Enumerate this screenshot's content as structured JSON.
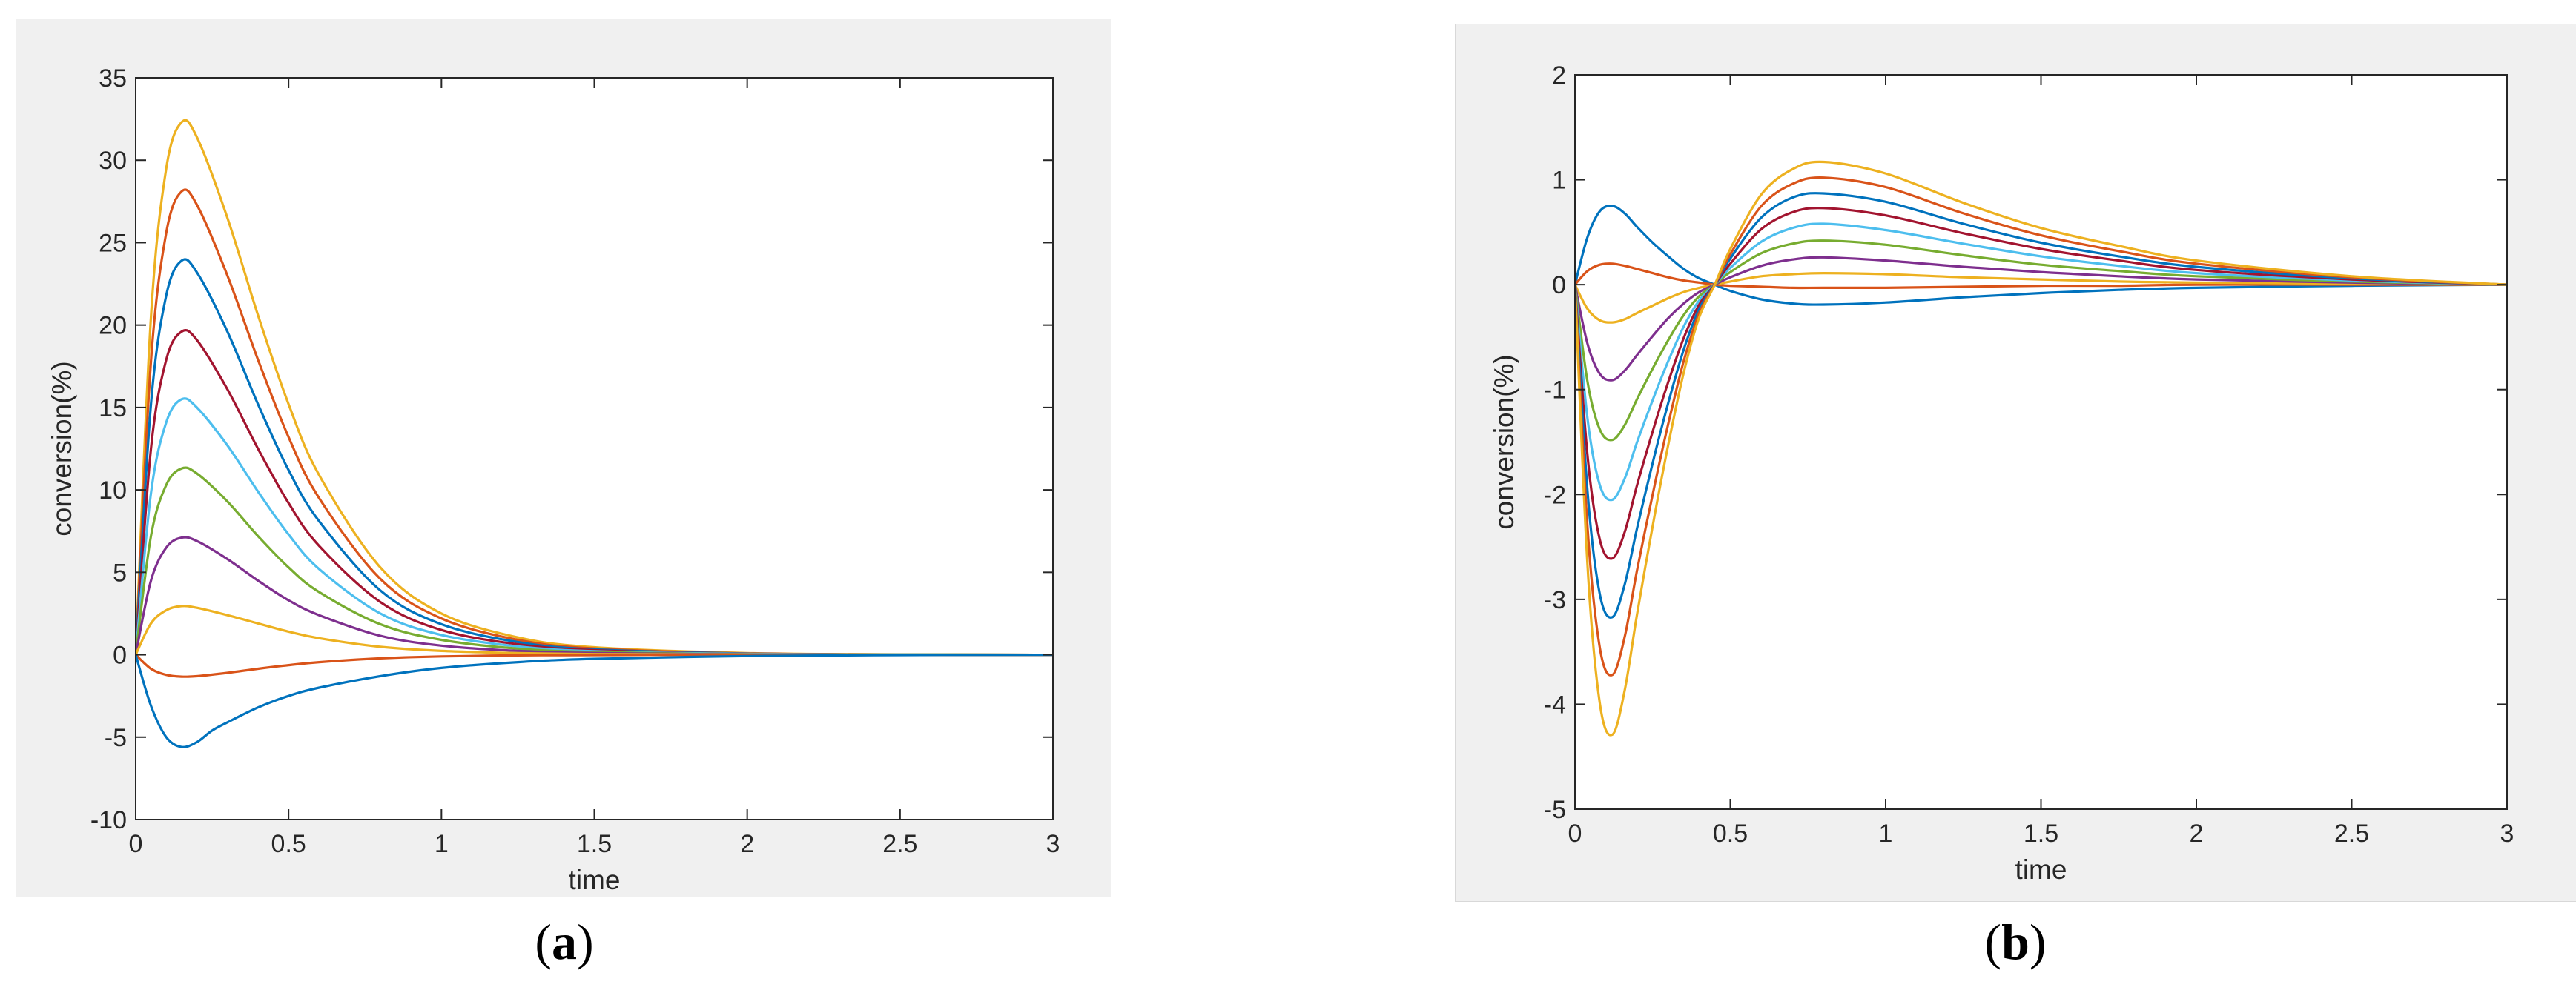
{
  "chart_data": [
    {
      "type": "line",
      "xlabel": "time",
      "ylabel": "conversion(%)",
      "xlim": [
        0,
        3
      ],
      "ylim": [
        -10,
        35
      ],
      "xticks": [
        "0",
        "0.5",
        "1",
        "1.5",
        "2",
        "2.5",
        "3"
      ],
      "yticks": [
        "-10",
        "-5",
        "0",
        "5",
        "10",
        "15",
        "20",
        "25",
        "30",
        "35"
      ],
      "grid": false,
      "legend": "none",
      "caption": {
        "open": "(",
        "letter": "a",
        "close": ")"
      },
      "series": [
        {
          "color": "#EDB120",
          "x": [
            0,
            0.05,
            0.1,
            0.15,
            0.2,
            0.3,
            0.4,
            0.5,
            0.6,
            0.8,
            1,
            1.25,
            1.5,
            2,
            2.5,
            3
          ],
          "y": [
            0,
            20.5,
            29.5,
            32.3,
            31.4,
            26.5,
            20.6,
            15.2,
            10.9,
            5.3,
            2.5,
            1.05,
            0.45,
            0.1,
            0.02,
            0
          ]
        },
        {
          "color": "#D95319",
          "x": [
            0,
            0.05,
            0.1,
            0.15,
            0.2,
            0.3,
            0.4,
            0.5,
            0.6,
            0.8,
            1,
            1.25,
            1.5,
            2,
            2.5,
            3
          ],
          "y": [
            0,
            17.8,
            25.6,
            28.1,
            27.3,
            23,
            17.9,
            13.2,
            9.5,
            4.6,
            2.2,
            0.9,
            0.38,
            0.08,
            0.02,
            0
          ]
        },
        {
          "color": "#0072BD",
          "x": [
            0,
            0.05,
            0.1,
            0.15,
            0.2,
            0.3,
            0.4,
            0.5,
            0.6,
            0.8,
            1,
            1.25,
            1.5,
            2,
            2.5,
            3
          ],
          "y": [
            0,
            15.2,
            21.8,
            23.9,
            23.2,
            19.6,
            15.2,
            11.2,
            8.1,
            3.9,
            1.85,
            0.77,
            0.32,
            0.07,
            0.01,
            0
          ]
        },
        {
          "color": "#A2142F",
          "x": [
            0,
            0.05,
            0.1,
            0.15,
            0.2,
            0.3,
            0.4,
            0.5,
            0.6,
            0.8,
            1,
            1.25,
            1.5,
            2,
            2.5,
            3
          ],
          "y": [
            0,
            12.5,
            17.9,
            19.6,
            19.1,
            16.1,
            12.5,
            9.2,
            6.6,
            3.2,
            1.5,
            0.63,
            0.27,
            0.06,
            0.01,
            0
          ]
        },
        {
          "color": "#4DBEEE",
          "x": [
            0,
            0.05,
            0.1,
            0.15,
            0.2,
            0.3,
            0.4,
            0.5,
            0.6,
            0.8,
            1,
            1.25,
            1.5,
            2,
            2.5,
            3
          ],
          "y": [
            0,
            9.8,
            14.1,
            15.5,
            15,
            12.7,
            9.9,
            7.3,
            5.2,
            2.5,
            1.2,
            0.5,
            0.21,
            0.05,
            0.01,
            0
          ]
        },
        {
          "color": "#77AC30",
          "x": [
            0,
            0.05,
            0.1,
            0.15,
            0.2,
            0.3,
            0.4,
            0.5,
            0.6,
            0.8,
            1,
            1.25,
            1.5,
            2,
            2.5,
            3
          ],
          "y": [
            0,
            7.2,
            10.3,
            11.3,
            11,
            9.3,
            7.2,
            5.3,
            3.8,
            1.85,
            0.9,
            0.37,
            0.16,
            0.03,
            0.01,
            0
          ]
        },
        {
          "color": "#7E2F8E",
          "x": [
            0,
            0.05,
            0.1,
            0.15,
            0.2,
            0.3,
            0.4,
            0.5,
            0.6,
            0.8,
            1,
            1.25,
            1.5,
            2,
            2.5,
            3
          ],
          "y": [
            0,
            4.5,
            6.5,
            7.1,
            6.9,
            5.8,
            4.5,
            3.3,
            2.4,
            1.15,
            0.55,
            0.23,
            0.1,
            0.02,
            0,
            0
          ]
        },
        {
          "color": "#EDB120",
          "x": [
            0,
            0.05,
            0.1,
            0.15,
            0.2,
            0.3,
            0.4,
            0.5,
            0.6,
            0.8,
            1,
            1.25,
            1.5,
            2,
            2.5,
            3
          ],
          "y": [
            0,
            1.9,
            2.7,
            2.95,
            2.85,
            2.4,
            1.9,
            1.4,
            1,
            0.48,
            0.23,
            0.1,
            0.04,
            0.01,
            0,
            0
          ]
        },
        {
          "color": "#D95319",
          "x": [
            0,
            0.05,
            0.1,
            0.15,
            0.2,
            0.3,
            0.4,
            0.5,
            0.6,
            0.8,
            1,
            1.25,
            1.5,
            2,
            2.5,
            3
          ],
          "y": [
            0,
            -0.85,
            -1.22,
            -1.33,
            -1.3,
            -1.1,
            -0.85,
            -0.63,
            -0.45,
            -0.22,
            -0.1,
            -0.04,
            -0.02,
            0,
            0,
            0
          ]
        },
        {
          "color": "#0072BD",
          "x": [
            0,
            0.05,
            0.1,
            0.15,
            0.2,
            0.25,
            0.3,
            0.4,
            0.5,
            0.6,
            0.8,
            1,
            1.25,
            1.5,
            2,
            2.5,
            3
          ],
          "y": [
            0,
            -3.1,
            -5,
            -5.6,
            -5.3,
            -4.6,
            -4.1,
            -3.2,
            -2.5,
            -2,
            -1.3,
            -0.8,
            -0.45,
            -0.25,
            -0.08,
            -0.02,
            0
          ]
        }
      ]
    },
    {
      "type": "line",
      "xlabel": "time",
      "ylabel": "conversion(%)",
      "xlim": [
        0,
        3
      ],
      "ylim": [
        -5,
        2
      ],
      "xticks": [
        "0",
        "0.5",
        "1",
        "1.5",
        "2",
        "2.5",
        "3"
      ],
      "yticks": [
        "-5",
        "-4",
        "-3",
        "-2",
        "-1",
        "0",
        "1",
        "2"
      ],
      "grid": false,
      "legend": "none",
      "caption": {
        "open": "(",
        "letter": "b",
        "close": ")"
      },
      "series": [
        {
          "color": "#0072BD",
          "x": [
            0,
            0.04,
            0.08,
            0.12,
            0.16,
            0.2,
            0.25,
            0.3,
            0.35,
            0.4,
            0.45,
            0.5,
            0.6,
            0.7,
            0.8,
            1,
            1.25,
            1.5,
            1.75,
            2,
            2.5,
            3
          ],
          "y": [
            0,
            0.45,
            0.7,
            0.75,
            0.68,
            0.55,
            0.4,
            0.27,
            0.15,
            0.06,
            0,
            -0.06,
            -0.14,
            -0.18,
            -0.19,
            -0.17,
            -0.12,
            -0.08,
            -0.05,
            -0.03,
            -0.01,
            0
          ]
        },
        {
          "color": "#D95319",
          "x": [
            0,
            0.04,
            0.08,
            0.12,
            0.16,
            0.2,
            0.25,
            0.3,
            0.35,
            0.4,
            0.45,
            0.5,
            0.6,
            0.7,
            0.8,
            1,
            1.25,
            1.5,
            1.75,
            2,
            2.5,
            3
          ],
          "y": [
            0,
            0.13,
            0.19,
            0.2,
            0.18,
            0.15,
            0.11,
            0.07,
            0.04,
            0.02,
            0,
            -0.01,
            -0.02,
            -0.03,
            -0.03,
            -0.03,
            -0.02,
            -0.01,
            -0.01,
            0,
            0,
            0
          ]
        },
        {
          "color": "#EDB120",
          "x": [
            0,
            0.04,
            0.08,
            0.12,
            0.16,
            0.2,
            0.25,
            0.3,
            0.35,
            0.4,
            0.45,
            0.5,
            0.6,
            0.7,
            0.8,
            1,
            1.25,
            1.5,
            1.75,
            2,
            2.5,
            3
          ],
          "y": [
            0,
            -0.23,
            -0.34,
            -0.36,
            -0.33,
            -0.27,
            -0.2,
            -0.13,
            -0.07,
            -0.03,
            0,
            0.03,
            0.08,
            0.1,
            0.11,
            0.1,
            0.07,
            0.05,
            0.03,
            0.02,
            0.01,
            0
          ]
        },
        {
          "color": "#7E2F8E",
          "x": [
            0,
            0.04,
            0.08,
            0.12,
            0.16,
            0.2,
            0.25,
            0.3,
            0.35,
            0.4,
            0.45,
            0.5,
            0.6,
            0.7,
            0.8,
            1,
            1.25,
            1.5,
            1.75,
            2,
            2.5,
            3
          ],
          "y": [
            0,
            -0.56,
            -0.85,
            -0.91,
            -0.82,
            -0.67,
            -0.49,
            -0.32,
            -0.18,
            -0.07,
            0,
            0.07,
            0.18,
            0.24,
            0.26,
            0.23,
            0.17,
            0.12,
            0.08,
            0.05,
            0.02,
            0
          ]
        },
        {
          "color": "#77AC30",
          "x": [
            0,
            0.04,
            0.08,
            0.12,
            0.16,
            0.2,
            0.25,
            0.3,
            0.35,
            0.4,
            0.45,
            0.5,
            0.6,
            0.7,
            0.8,
            1,
            1.25,
            1.5,
            1.75,
            2,
            2.5,
            3
          ],
          "y": [
            0,
            -0.92,
            -1.38,
            -1.48,
            -1.34,
            -1.09,
            -0.8,
            -0.53,
            -0.29,
            -0.11,
            0,
            0.12,
            0.3,
            0.39,
            0.42,
            0.38,
            0.28,
            0.19,
            0.13,
            0.08,
            0.03,
            0
          ]
        },
        {
          "color": "#4DBEEE",
          "x": [
            0,
            0.04,
            0.08,
            0.12,
            0.16,
            0.2,
            0.25,
            0.3,
            0.35,
            0.4,
            0.45,
            0.5,
            0.6,
            0.7,
            0.8,
            1,
            1.25,
            1.5,
            1.75,
            2,
            2.5,
            3
          ],
          "y": [
            0,
            -1.27,
            -1.91,
            -2.05,
            -1.85,
            -1.5,
            -1.1,
            -0.73,
            -0.4,
            -0.15,
            0,
            0.16,
            0.41,
            0.54,
            0.58,
            0.52,
            0.39,
            0.27,
            0.18,
            0.11,
            0.04,
            0
          ]
        },
        {
          "color": "#A2142F",
          "x": [
            0,
            0.04,
            0.08,
            0.12,
            0.16,
            0.2,
            0.25,
            0.3,
            0.35,
            0.4,
            0.45,
            0.5,
            0.6,
            0.7,
            0.8,
            1,
            1.25,
            1.5,
            1.75,
            2,
            2.5,
            3
          ],
          "y": [
            0,
            -1.62,
            -2.43,
            -2.61,
            -2.36,
            -1.91,
            -1.4,
            -0.93,
            -0.51,
            -0.19,
            0,
            0.2,
            0.53,
            0.69,
            0.73,
            0.66,
            0.49,
            0.34,
            0.23,
            0.14,
            0.05,
            0
          ]
        },
        {
          "color": "#0072BD",
          "x": [
            0,
            0.04,
            0.08,
            0.12,
            0.16,
            0.2,
            0.25,
            0.3,
            0.35,
            0.4,
            0.45,
            0.5,
            0.6,
            0.7,
            0.8,
            1,
            1.25,
            1.5,
            1.75,
            2,
            2.5,
            3
          ],
          "y": [
            0,
            -1.96,
            -2.95,
            -3.17,
            -2.86,
            -2.32,
            -1.7,
            -1.13,
            -0.62,
            -0.23,
            0,
            0.25,
            0.64,
            0.83,
            0.87,
            0.79,
            0.58,
            0.4,
            0.27,
            0.17,
            0.06,
            0
          ]
        },
        {
          "color": "#D95319",
          "x": [
            0,
            0.04,
            0.08,
            0.12,
            0.16,
            0.2,
            0.25,
            0.3,
            0.35,
            0.4,
            0.45,
            0.5,
            0.6,
            0.7,
            0.8,
            1,
            1.25,
            1.5,
            1.75,
            2,
            2.5,
            3
          ],
          "y": [
            0,
            -2.3,
            -3.46,
            -3.72,
            -3.36,
            -2.72,
            -2,
            -1.33,
            -0.73,
            -0.27,
            0,
            0.29,
            0.75,
            0.96,
            1.02,
            0.93,
            0.68,
            0.47,
            0.32,
            0.2,
            0.07,
            0
          ]
        },
        {
          "color": "#EDB120",
          "x": [
            0,
            0.04,
            0.08,
            0.12,
            0.16,
            0.2,
            0.25,
            0.3,
            0.35,
            0.4,
            0.45,
            0.5,
            0.6,
            0.7,
            0.8,
            1,
            1.25,
            1.5,
            1.75,
            2,
            2.5,
            3
          ],
          "y": [
            0,
            -2.66,
            -3.99,
            -4.29,
            -3.87,
            -3.14,
            -2.3,
            -1.53,
            -0.84,
            -0.31,
            0,
            0.34,
            0.86,
            1.1,
            1.17,
            1.06,
            0.78,
            0.54,
            0.37,
            0.23,
            0.08,
            0
          ]
        }
      ]
    }
  ]
}
